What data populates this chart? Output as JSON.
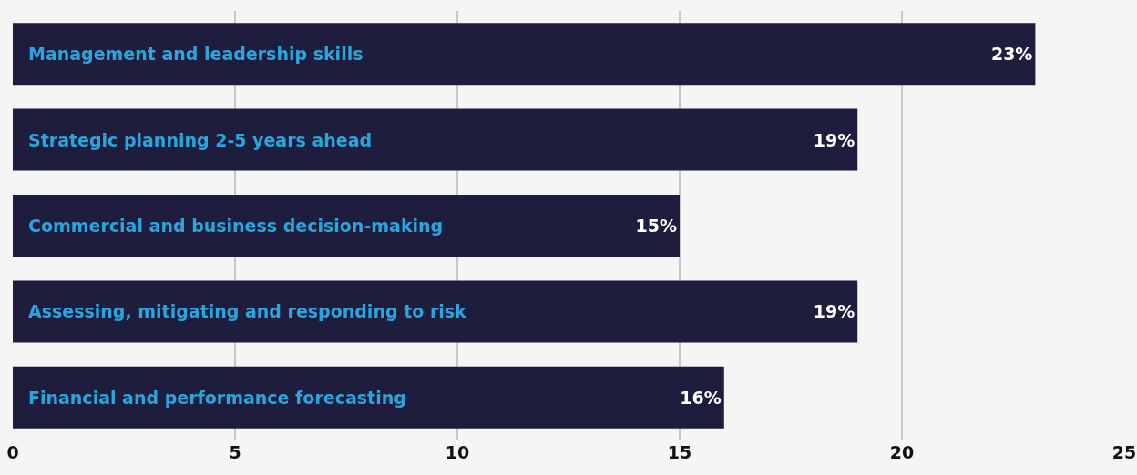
{
  "chart_data": {
    "type": "bar",
    "orientation": "horizontal",
    "categories": [
      "Management and leadership skills",
      "Strategic planning 2-5 years ahead",
      "Commercial and business decision-making",
      "Assessing, mitigating and responding to risk",
      "Financial and performance forecasting"
    ],
    "values": [
      23,
      19,
      15,
      19,
      16
    ],
    "value_labels": [
      "23%",
      "19%",
      "15%",
      "19%",
      "16%"
    ],
    "color": "#1f1d3d",
    "xlim": [
      0,
      25
    ],
    "xticks": [
      0,
      5,
      10,
      15,
      20,
      25
    ],
    "grid": "x"
  }
}
